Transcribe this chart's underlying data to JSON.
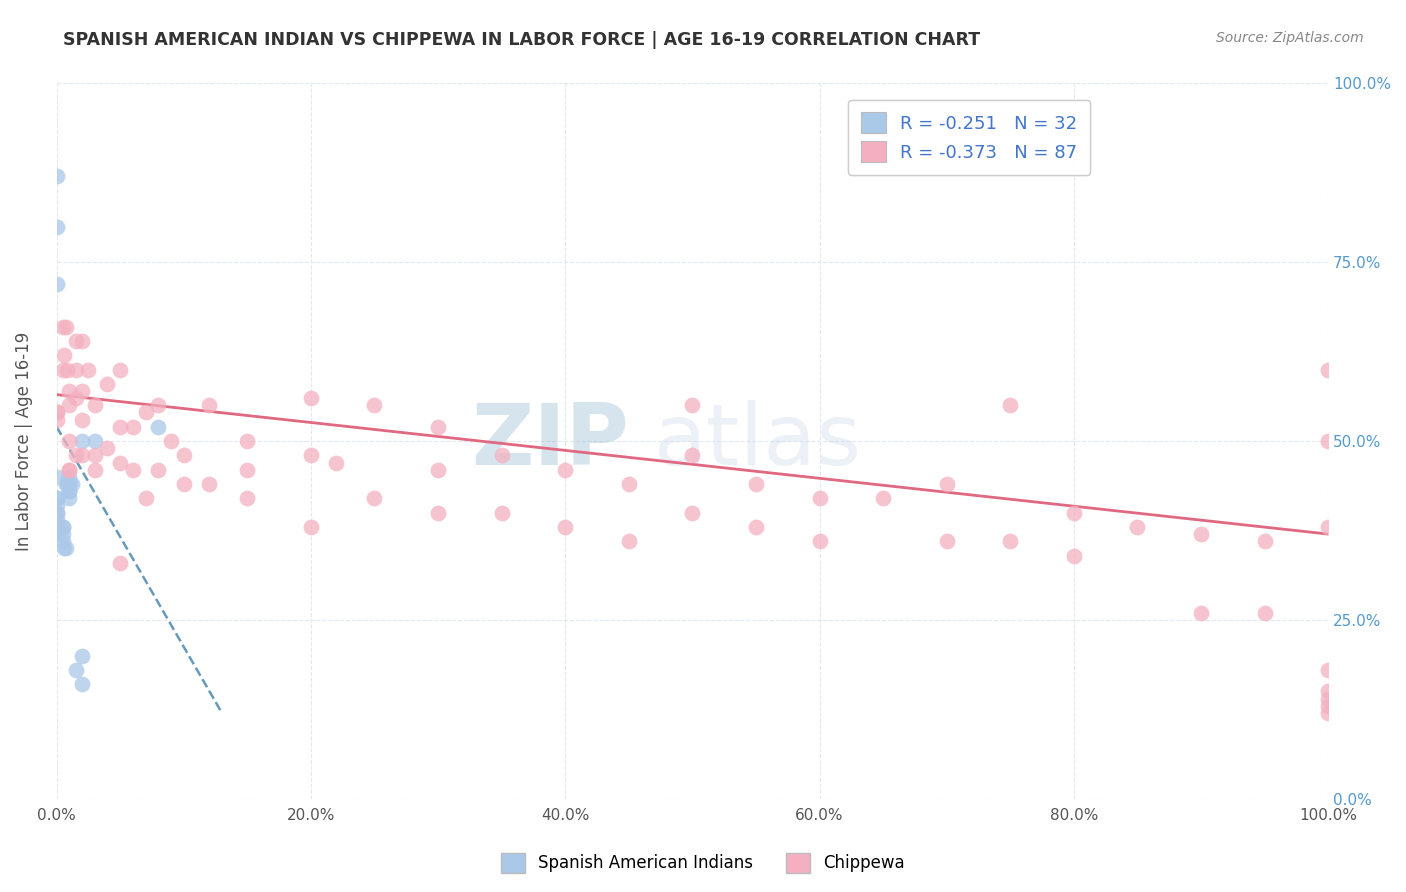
{
  "title": "SPANISH AMERICAN INDIAN VS CHIPPEWA IN LABOR FORCE | AGE 16-19 CORRELATION CHART",
  "source": "Source: ZipAtlas.com",
  "ylabel": "In Labor Force | Age 16-19",
  "xlim": [
    0.0,
    100.0
  ],
  "ylim": [
    0.0,
    100.0
  ],
  "background_color": "#ffffff",
  "grid_color": "#e0e8f0",
  "watermark_zip": "ZIP",
  "watermark_atlas": "atlas",
  "legend_text1": "R = -0.251   N = 32",
  "legend_text2": "R = -0.373   N = 87",
  "series1_color": "#aac8e8",
  "series2_color": "#f4b0c0",
  "series1_label": "Spanish American Indians",
  "series2_label": "Chippewa",
  "trendline1_color": "#6699bb",
  "trendline2_color": "#e06880",
  "trendline1_style": "--",
  "trendline2_style": "-",
  "series1_x": [
    0.0,
    0.0,
    0.0,
    0.0,
    0.0,
    0.0,
    0.0,
    0.0,
    0.0,
    0.0,
    0.0,
    0.5,
    0.5,
    0.5,
    0.5,
    0.6,
    0.7,
    0.7,
    0.8,
    1.0,
    1.0,
    1.0,
    1.0,
    1.0,
    1.0,
    1.2,
    1.5,
    2.0,
    2.0,
    2.0,
    3.0,
    8.0
  ],
  "series1_y": [
    87.0,
    80.0,
    72.0,
    45.0,
    42.0,
    42.0,
    41.0,
    40.0,
    40.0,
    39.0,
    37.0,
    38.0,
    38.0,
    37.0,
    36.0,
    35.0,
    35.0,
    44.0,
    44.0,
    45.0,
    44.0,
    44.0,
    43.0,
    43.0,
    42.0,
    44.0,
    18.0,
    20.0,
    16.0,
    50.0,
    50.0,
    52.0
  ],
  "series2_x": [
    0.0,
    0.0,
    0.0,
    0.5,
    0.5,
    0.6,
    0.7,
    0.8,
    1.0,
    1.0,
    1.0,
    1.0,
    1.0,
    1.5,
    1.5,
    1.5,
    1.5,
    2.0,
    2.0,
    2.0,
    2.0,
    2.5,
    3.0,
    3.0,
    3.0,
    4.0,
    4.0,
    5.0,
    5.0,
    5.0,
    5.0,
    6.0,
    6.0,
    7.0,
    7.0,
    8.0,
    8.0,
    9.0,
    10.0,
    10.0,
    12.0,
    12.0,
    15.0,
    15.0,
    15.0,
    20.0,
    20.0,
    20.0,
    22.0,
    25.0,
    25.0,
    30.0,
    30.0,
    30.0,
    35.0,
    35.0,
    40.0,
    40.0,
    45.0,
    45.0,
    50.0,
    50.0,
    50.0,
    55.0,
    55.0,
    60.0,
    60.0,
    65.0,
    70.0,
    70.0,
    75.0,
    75.0,
    80.0,
    80.0,
    85.0,
    90.0,
    90.0,
    95.0,
    95.0,
    100.0,
    100.0,
    100.0,
    100.0,
    100.0,
    100.0,
    100.0,
    100.0
  ],
  "series2_y": [
    54.0,
    54.0,
    53.0,
    66.0,
    60.0,
    62.0,
    66.0,
    60.0,
    55.0,
    50.0,
    46.0,
    46.0,
    57.0,
    64.0,
    60.0,
    56.0,
    48.0,
    64.0,
    57.0,
    53.0,
    48.0,
    60.0,
    55.0,
    48.0,
    46.0,
    58.0,
    49.0,
    60.0,
    52.0,
    47.0,
    33.0,
    52.0,
    46.0,
    54.0,
    42.0,
    55.0,
    46.0,
    50.0,
    48.0,
    44.0,
    55.0,
    44.0,
    46.0,
    50.0,
    42.0,
    56.0,
    48.0,
    38.0,
    47.0,
    55.0,
    42.0,
    52.0,
    46.0,
    40.0,
    48.0,
    40.0,
    46.0,
    38.0,
    44.0,
    36.0,
    48.0,
    40.0,
    55.0,
    44.0,
    38.0,
    42.0,
    36.0,
    42.0,
    44.0,
    36.0,
    55.0,
    36.0,
    40.0,
    34.0,
    38.0,
    37.0,
    26.0,
    36.0,
    26.0,
    60.0,
    50.0,
    13.0,
    12.0,
    18.0,
    15.0,
    14.0,
    38.0
  ],
  "trendline1_x": [
    0.0,
    13.0
  ],
  "trendline1_y": [
    52.0,
    12.0
  ],
  "trendline2_x": [
    0.0,
    100.0
  ],
  "trendline2_y": [
    56.5,
    37.0
  ],
  "xtick_positions": [
    0.0,
    20.0,
    40.0,
    60.0,
    80.0,
    100.0
  ],
  "xtick_labels": [
    "0.0%",
    "20.0%",
    "40.0%",
    "60.0%",
    "80.0%",
    "100.0%"
  ],
  "ytick_positions": [
    0.0,
    25.0,
    50.0,
    75.0,
    100.0
  ],
  "ytick_labels_right": [
    "0.0%",
    "25.0%",
    "50.0%",
    "75.0%",
    "100.0%"
  ]
}
